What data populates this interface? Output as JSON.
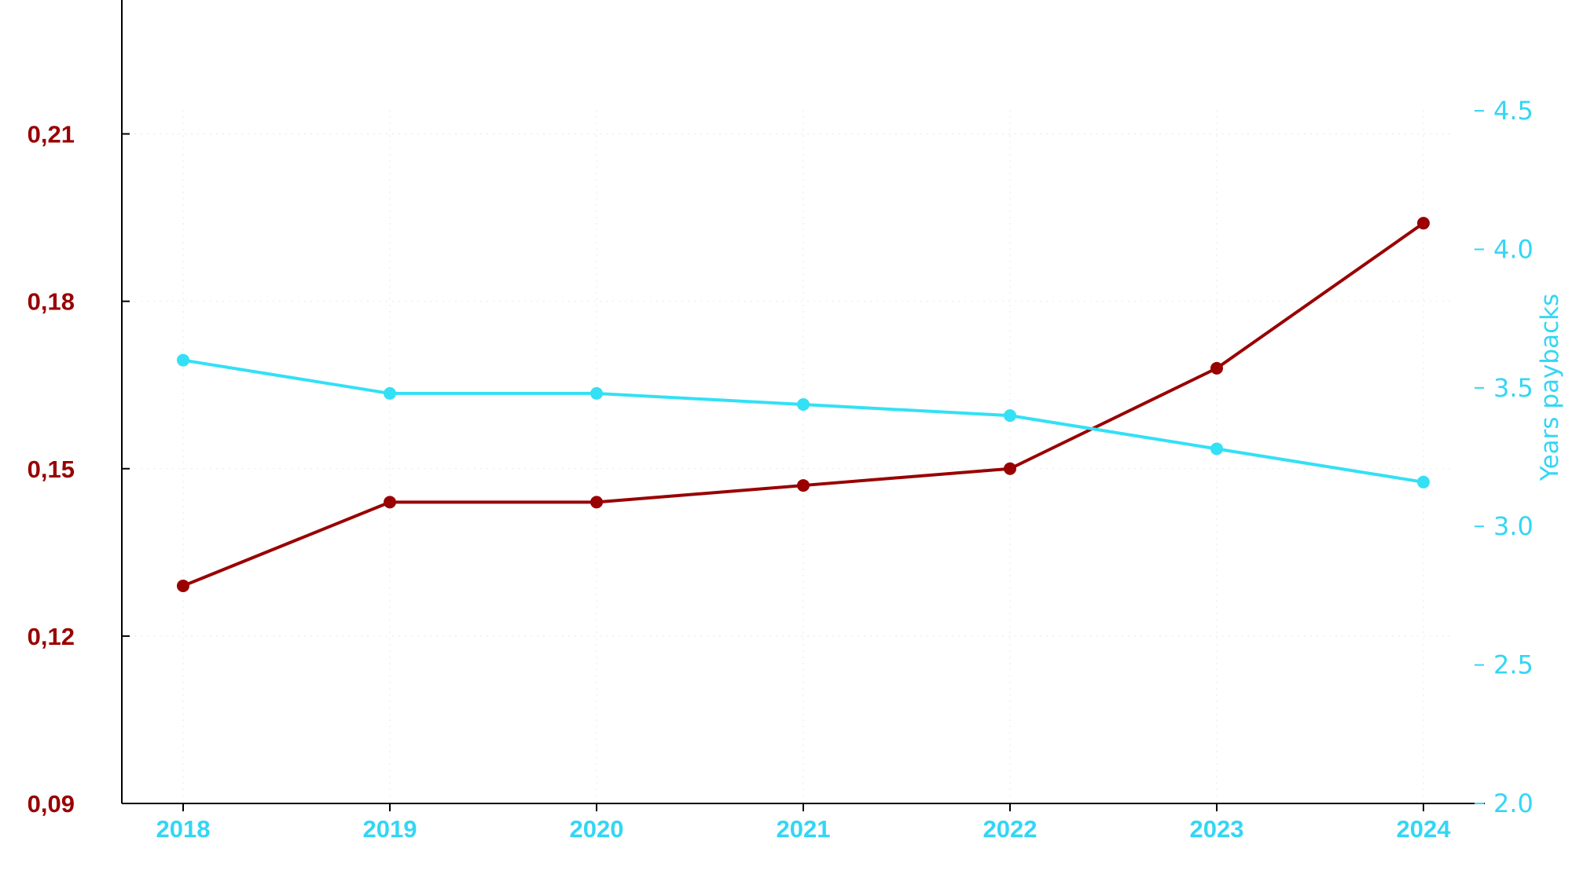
{
  "chart_data": {
    "type": "line",
    "categories": [
      "2018",
      "2019",
      "2020",
      "2021",
      "2022",
      "2023",
      "2024"
    ],
    "series": [
      {
        "axis": "left",
        "color": "#990000",
        "values": [
          0.129,
          0.144,
          0.144,
          0.147,
          0.15,
          0.168,
          0.194
        ]
      },
      {
        "name": "Years paybacks",
        "axis": "right",
        "color": "#33e0f5",
        "values": [
          3.6,
          3.48,
          3.48,
          3.44,
          3.4,
          3.28,
          3.16
        ]
      }
    ],
    "left_axis": {
      "ylim": [
        0.09,
        0.234
      ],
      "ticks": [
        0.09,
        0.12,
        0.15,
        0.18,
        0.21
      ],
      "tick_labels": [
        "0,09",
        "0,12",
        "0,15",
        "0,18",
        "0,21"
      ],
      "label_color": "#990000"
    },
    "right_axis": {
      "label": "Years paybacks",
      "ylim": [
        2.0,
        4.9
      ],
      "ticks": [
        2.0,
        2.5,
        3.0,
        3.5,
        4.0,
        4.5
      ],
      "tick_labels": [
        "2.0",
        "2.5",
        "3.0",
        "3.5",
        "4.0",
        "4.5"
      ],
      "label_color": "#33d6f5"
    },
    "x_tick_color": "#33d6f5",
    "grid": "faint dotted vertical and horizontal",
    "legend": "none"
  }
}
